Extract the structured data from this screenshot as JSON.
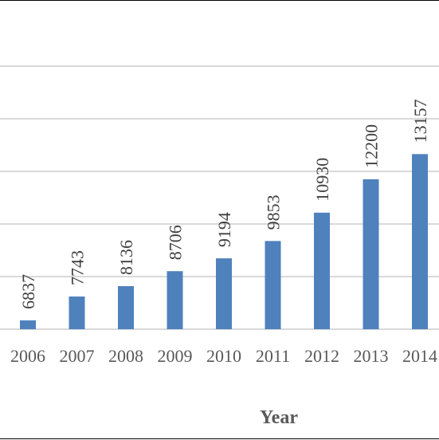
{
  "chart_data": {
    "type": "bar",
    "title": "",
    "xlabel": "Year",
    "ylabel": "",
    "categories": [
      "2006",
      "2007",
      "2008",
      "2009",
      "2010",
      "2011",
      "2012",
      "2013",
      "2014"
    ],
    "values": [
      6837,
      7743,
      8136,
      8706,
      9194,
      9853,
      10930,
      12200,
      13157
    ],
    "data_labels": [
      "6837",
      "7743",
      "8136",
      "8706",
      "9194",
      "9853",
      "10930",
      "12200",
      "13157"
    ],
    "ylim": [
      6500,
      16500
    ],
    "y_grid_step": 2000,
    "grid": true,
    "legend": "none",
    "bar_color": "#4f81bd",
    "grid_color": "#d9d9d9",
    "label_color": "#595959"
  }
}
